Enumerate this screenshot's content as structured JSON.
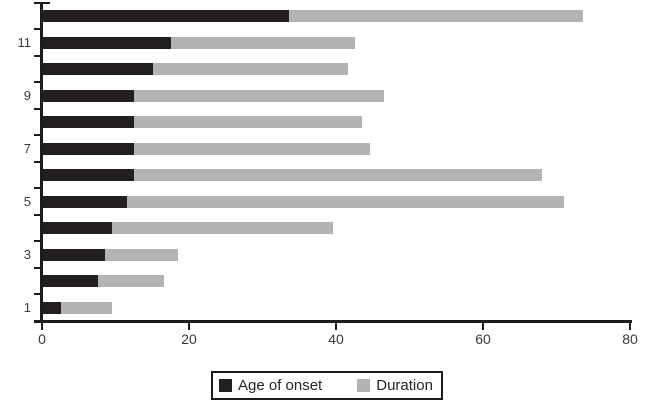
{
  "chart_data": {
    "type": "bar",
    "orientation": "horizontal",
    "stacked": true,
    "title": "",
    "xlabel": "",
    "ylabel": "",
    "categories": [
      1,
      2,
      3,
      4,
      5,
      6,
      7,
      8,
      9,
      10,
      11,
      12
    ],
    "series": [
      {
        "name": "Age of onset",
        "color": "#231f20",
        "values": [
          2.5,
          7.5,
          8.5,
          9.5,
          11.5,
          12.5,
          12.5,
          12.5,
          12.5,
          15,
          17.5,
          33.5
        ]
      },
      {
        "name": "Duration",
        "color": "#b2b3b5",
        "values": [
          7,
          9,
          10,
          30,
          59.5,
          55.5,
          32,
          31,
          34,
          26.5,
          25,
          40
        ]
      }
    ],
    "stack_totals": [
      9.5,
      16.5,
      18.5,
      39.5,
      71,
      68,
      44.5,
      43.5,
      46.5,
      41.5,
      42.5,
      73.5
    ],
    "x_axis": {
      "range": [
        0,
        80
      ],
      "ticks": [
        0,
        20,
        40,
        60,
        80
      ]
    },
    "y_axis": {
      "labeled_categories": [
        1,
        3,
        5,
        7,
        9,
        11
      ]
    },
    "grid": false,
    "legend_position": "bottom-center"
  },
  "colors": {
    "axis": "#1c1c1c",
    "tick_text": "#39393b",
    "background": "#ffffff"
  }
}
